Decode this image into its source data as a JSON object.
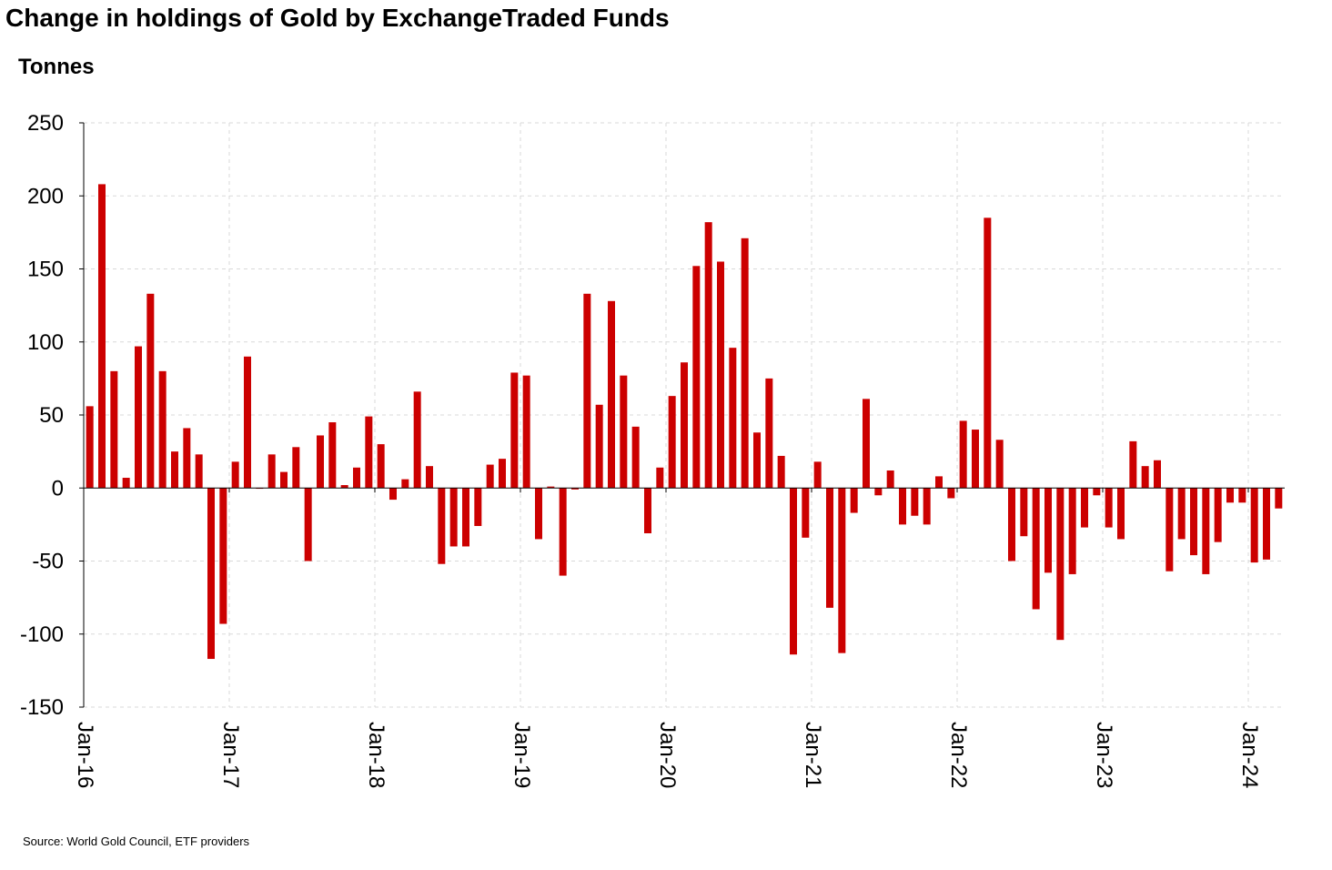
{
  "title": "Change in holdings of Gold by ExchangeTraded Funds",
  "y_unit": "Tonnes",
  "source": "Source: World Gold Council, ETF providers",
  "chart_data": {
    "type": "bar",
    "title": "Change in holdings of Gold by ExchangeTraded Funds",
    "ylabel": "Tonnes",
    "ylim": [
      -150,
      250
    ],
    "yticks": [
      250,
      200,
      150,
      100,
      50,
      0,
      -50,
      -100,
      -150
    ],
    "xtick_labels": [
      "Jan-16",
      "Jan-17",
      "Jan-18",
      "Jan-19",
      "Jan-20",
      "Jan-21",
      "Jan-22",
      "Jan-23",
      "Jan-24"
    ],
    "grid": true,
    "bar_color": "#cc0000",
    "categories": [
      "Jan-16",
      "Feb-16",
      "Mar-16",
      "Apr-16",
      "May-16",
      "Jun-16",
      "Jul-16",
      "Aug-16",
      "Sep-16",
      "Oct-16",
      "Nov-16",
      "Dec-16",
      "Jan-17",
      "Feb-17",
      "Mar-17",
      "Apr-17",
      "May-17",
      "Jun-17",
      "Jul-17",
      "Aug-17",
      "Sep-17",
      "Oct-17",
      "Nov-17",
      "Dec-17",
      "Jan-18",
      "Feb-18",
      "Mar-18",
      "Apr-18",
      "May-18",
      "Jun-18",
      "Jul-18",
      "Aug-18",
      "Sep-18",
      "Oct-18",
      "Nov-18",
      "Dec-18",
      "Jan-19",
      "Feb-19",
      "Mar-19",
      "Apr-19",
      "May-19",
      "Jun-19",
      "Jul-19",
      "Aug-19",
      "Sep-19",
      "Oct-19",
      "Nov-19",
      "Dec-19",
      "Jan-20",
      "Feb-20",
      "Mar-20",
      "Apr-20",
      "May-20",
      "Jun-20",
      "Jul-20",
      "Aug-20",
      "Sep-20",
      "Oct-20",
      "Nov-20",
      "Dec-20",
      "Jan-21",
      "Feb-21",
      "Mar-21",
      "Apr-21",
      "May-21",
      "Jun-21",
      "Jul-21",
      "Aug-21",
      "Sep-21",
      "Oct-21",
      "Nov-21",
      "Dec-21",
      "Jan-22",
      "Feb-22",
      "Mar-22",
      "Apr-22",
      "May-22",
      "Jun-22",
      "Jul-22",
      "Aug-22",
      "Sep-22",
      "Oct-22",
      "Nov-22",
      "Dec-22",
      "Jan-23",
      "Feb-23",
      "Mar-23",
      "Apr-23",
      "May-23",
      "Jun-23",
      "Jul-23",
      "Aug-23",
      "Sep-23",
      "Oct-23",
      "Nov-23",
      "Dec-23",
      "Jan-24",
      "Feb-24",
      "Mar-24"
    ],
    "values": [
      56,
      208,
      80,
      7,
      97,
      133,
      80,
      25,
      41,
      23,
      -117,
      -93,
      18,
      90,
      0,
      23,
      11,
      28,
      -50,
      36,
      45,
      2,
      14,
      49,
      30,
      -8,
      6,
      66,
      15,
      -52,
      -40,
      -40,
      -26,
      16,
      20,
      79,
      77,
      -35,
      1,
      -60,
      -1,
      133,
      57,
      128,
      77,
      42,
      -31,
      14,
      63,
      86,
      152,
      182,
      155,
      96,
      171,
      38,
      75,
      22,
      -114,
      -34,
      18,
      -82,
      -113,
      -17,
      61,
      -5,
      12,
      -25,
      -19,
      -25,
      8,
      -7,
      46,
      40,
      185,
      33,
      -50,
      -33,
      -83,
      -58,
      -104,
      -59,
      -27,
      -5,
      -27,
      -35,
      32,
      15,
      19,
      -57,
      -35,
      -46,
      -59,
      -37,
      -10,
      -10,
      -51,
      -49,
      -14
    ]
  }
}
